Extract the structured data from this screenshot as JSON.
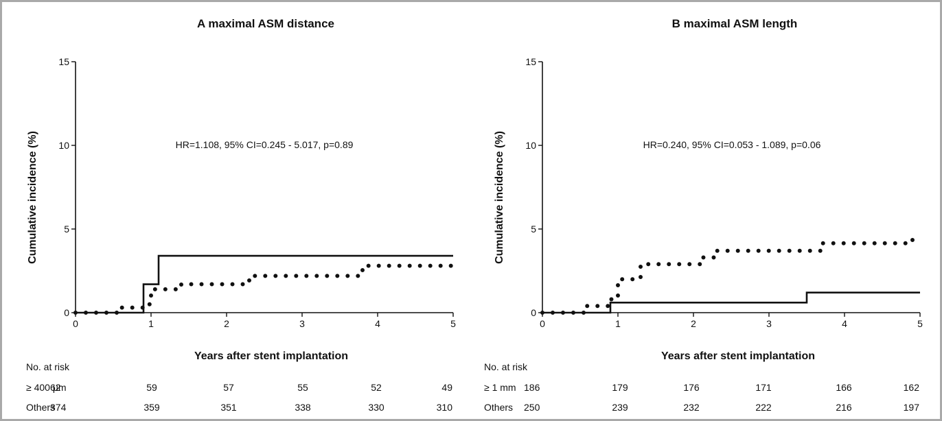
{
  "chart_data": [
    {
      "type": "line",
      "title": "A  maximal ASM distance",
      "xlabel": "Years after stent implantation",
      "ylabel": "Cumulative incidence (%)",
      "xlim": [
        0,
        5
      ],
      "ylim": [
        0,
        15
      ],
      "xticks": [
        0,
        1,
        2,
        3,
        4,
        5
      ],
      "yticks": [
        0,
        5,
        10,
        15
      ],
      "annotation": "HR=1.108, 95% CI=0.245 - 5.017, p=0.89",
      "series": [
        {
          "style": "solid",
          "x": [
            0,
            0.9,
            1.1,
            5
          ],
          "y": [
            0,
            1.7,
            3.4,
            3.4
          ]
        },
        {
          "style": "dotted",
          "x": [
            0,
            0.5,
            0.55,
            0.85,
            0.9,
            0.95,
            1.0,
            1.4,
            2.2,
            2.3,
            3.7,
            3.8,
            4.9,
            5.0
          ],
          "y": [
            0,
            0,
            0.3,
            0.3,
            0.5,
            0.5,
            1.4,
            1.7,
            1.7,
            2.2,
            2.2,
            2.8,
            2.8,
            3.1
          ]
        }
      ],
      "risk_table": {
        "heading": "No. at risk",
        "rows": [
          {
            "label": "≥ 400 μm",
            "values": [
              "62",
              "59",
              "57",
              "55",
              "52",
              "49"
            ]
          },
          {
            "label": "Others",
            "values": [
              "374",
              "359",
              "351",
              "338",
              "330",
              "310"
            ]
          }
        ]
      }
    },
    {
      "type": "line",
      "title": "B  maximal ASM length",
      "xlabel": "Years after stent implantation",
      "ylabel": "Cumulative incidence (%)",
      "xlim": [
        0,
        5
      ],
      "ylim": [
        0,
        15
      ],
      "xticks": [
        0,
        1,
        2,
        3,
        4,
        5
      ],
      "yticks": [
        0,
        5,
        10,
        15
      ],
      "annotation": "HR=0.240, 95% CI=0.053 - 1.089, p=0.06",
      "series": [
        {
          "style": "solid",
          "x": [
            0,
            0.9,
            3.5,
            5
          ],
          "y": [
            0,
            0.6,
            1.2,
            1.2
          ]
        },
        {
          "style": "dotted",
          "x": [
            0,
            0.45,
            0.55,
            0.85,
            0.9,
            1.0,
            1.3,
            2.0,
            2.1,
            2.3,
            3.6,
            3.7,
            4.85,
            4.9
          ],
          "y": [
            0,
            0,
            0.4,
            0.4,
            0.8,
            2.0,
            2.9,
            2.9,
            3.3,
            3.7,
            3.7,
            4.15,
            4.15,
            4.6
          ]
        }
      ],
      "risk_table": {
        "heading": "No. at risk",
        "rows": [
          {
            "label": "≥ 1 mm",
            "values": [
              "186",
              "179",
              "176",
              "171",
              "166",
              "162"
            ]
          },
          {
            "label": "Others",
            "values": [
              "250",
              "239",
              "232",
              "222",
              "216",
              "197"
            ]
          }
        ]
      }
    }
  ]
}
